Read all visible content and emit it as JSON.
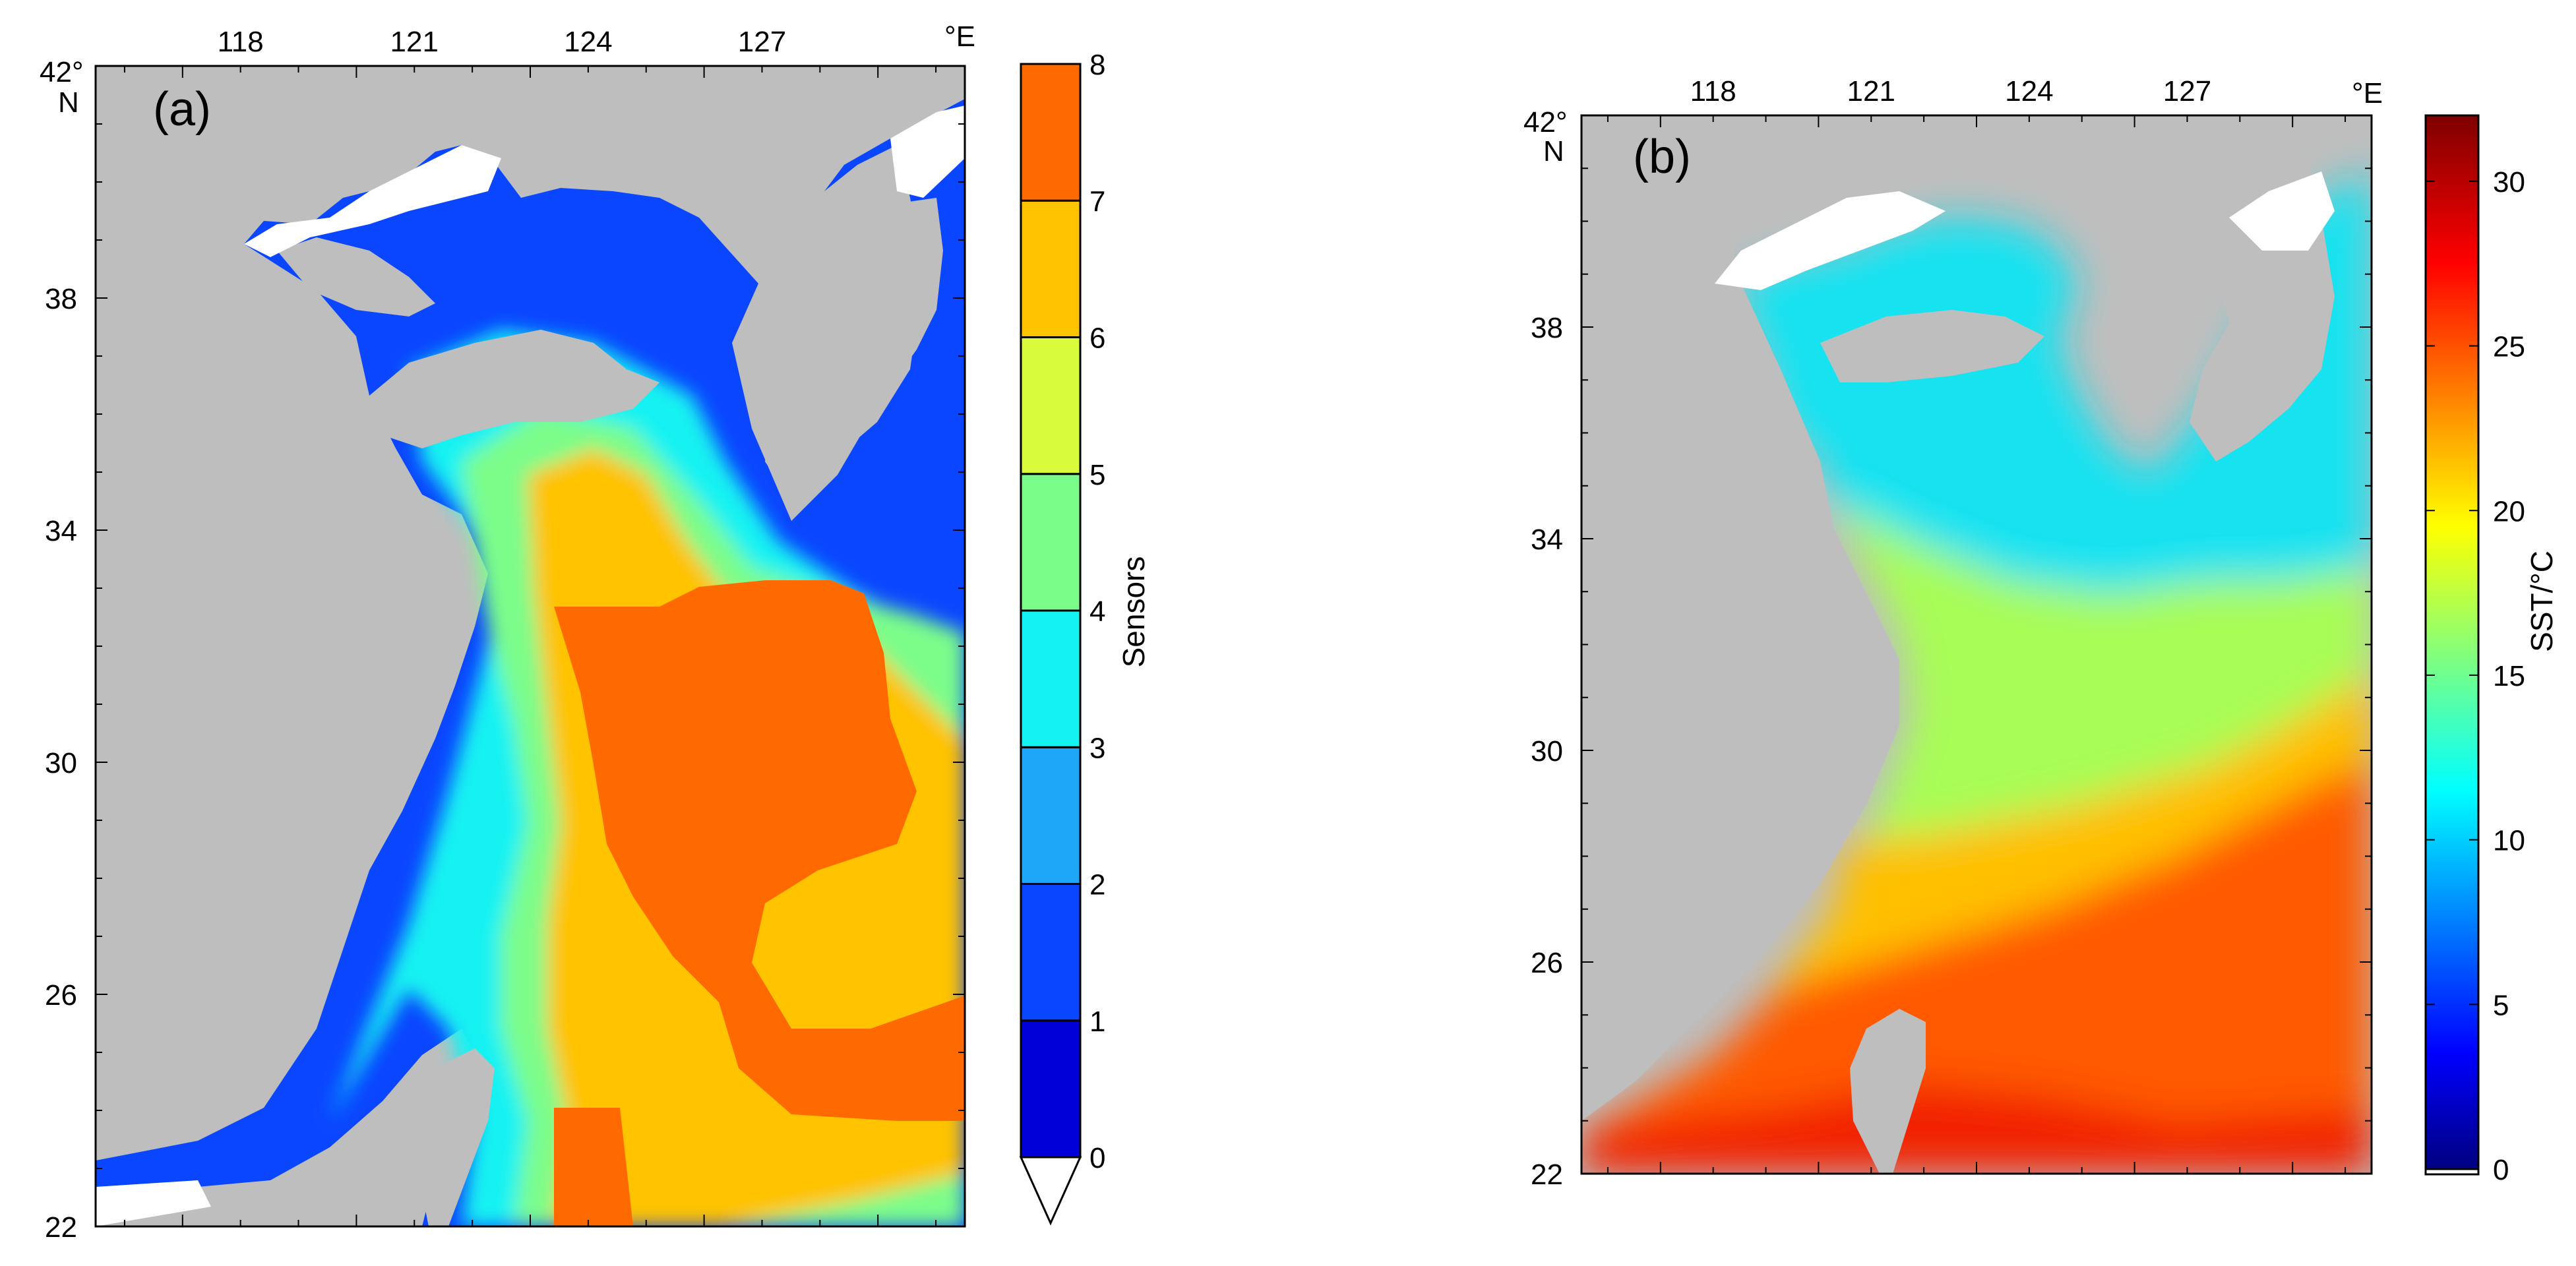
{
  "chart_data": [
    {
      "type": "heatmap",
      "panel_label": "(a)",
      "lon_ticks": [
        "118",
        "121",
        "124",
        "127"
      ],
      "lon_unit": "°E",
      "lat_ticks": [
        "22",
        "26",
        "30",
        "34",
        "38"
      ],
      "lat_top_label": "42°",
      "lat_unit": "N",
      "colorbar": {
        "title": "Sensors",
        "tick_labels": [
          "0",
          "1",
          "2",
          "3",
          "4",
          "5",
          "6",
          "7",
          "8"
        ],
        "classes": [
          {
            "min": 0,
            "max": 1,
            "color": "#0000d8"
          },
          {
            "min": 1,
            "max": 2,
            "color": "#0a46ff"
          },
          {
            "min": 2,
            "max": 3,
            "color": "#1ea6f8"
          },
          {
            "min": 3,
            "max": 4,
            "color": "#15f2f2"
          },
          {
            "min": 4,
            "max": 5,
            "color": "#7bfd8a"
          },
          {
            "min": 5,
            "max": 6,
            "color": "#d8fb3c"
          },
          {
            "min": 6,
            "max": 7,
            "color": "#ffc300"
          },
          {
            "min": 7,
            "max": 8,
            "color": "#ff6a00"
          }
        ],
        "extend": "below"
      },
      "colors": {
        "land": "#bebebe",
        "missing": "#ffffff"
      }
    },
    {
      "type": "heatmap",
      "panel_label": "(b)",
      "lon_ticks": [
        "118",
        "121",
        "124",
        "127"
      ],
      "lon_unit": "°E",
      "lat_ticks": [
        "22",
        "26",
        "30",
        "34",
        "38"
      ],
      "lat_top_label": "42°",
      "lat_unit": "N",
      "colorbar": {
        "title": "SST/°C",
        "tick_labels": [
          "0",
          "5",
          "10",
          "15",
          "20",
          "25",
          "30"
        ],
        "range": [
          0,
          32
        ],
        "colormap": "jet"
      },
      "colors": {
        "land": "#bebebe",
        "missing": "#ffffff"
      }
    }
  ]
}
